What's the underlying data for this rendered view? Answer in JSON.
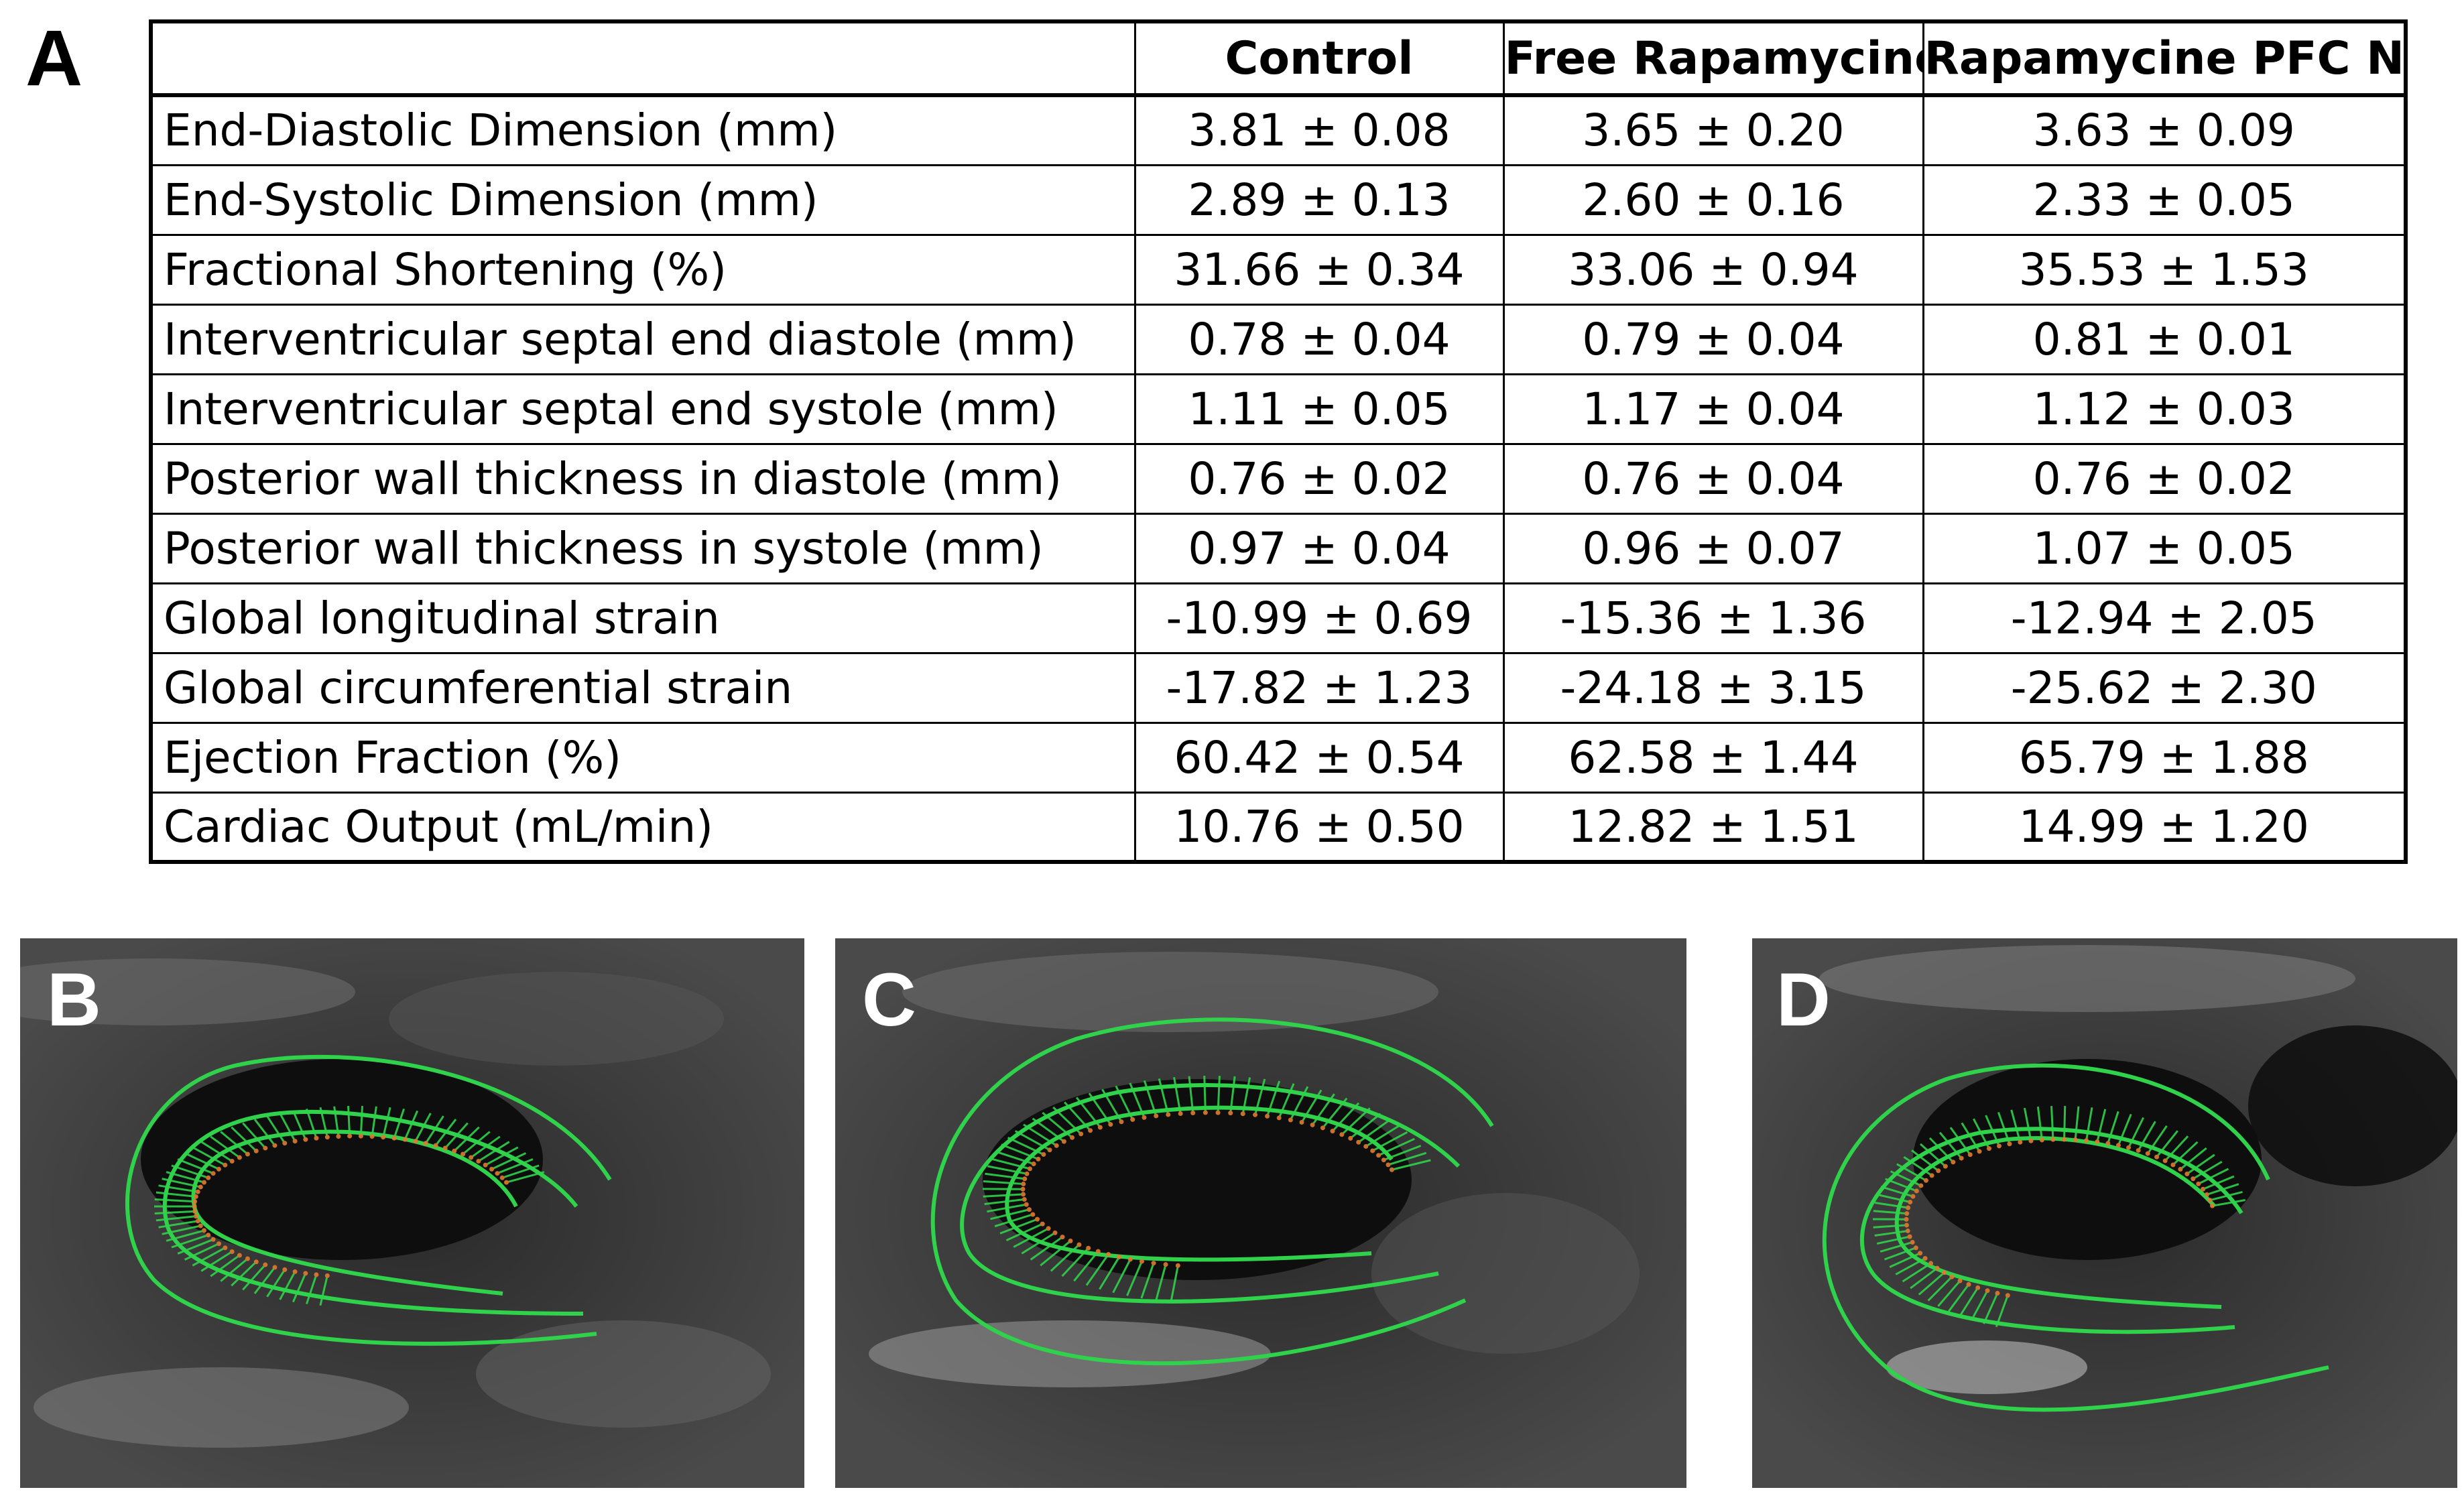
{
  "panel_labels": {
    "a": "A",
    "b": "B",
    "c": "C",
    "d": "D"
  },
  "table": {
    "headers": [
      "",
      "Control",
      "Free Rapamycine",
      "Rapamycine PFC NP"
    ],
    "rows": [
      {
        "label": "End-Diastolic Dimension (mm)",
        "values": [
          "3.81 ± 0.08",
          "3.65 ± 0.20",
          "3.63 ± 0.09"
        ]
      },
      {
        "label": "End-Systolic Dimension (mm)",
        "values": [
          "2.89 ± 0.13",
          "2.60 ± 0.16",
          "2.33 ± 0.05"
        ]
      },
      {
        "label": "Fractional Shortening (%)",
        "values": [
          "31.66 ± 0.34",
          "33.06 ± 0.94",
          "35.53 ± 1.53"
        ]
      },
      {
        "label": "Interventricular septal end diastole (mm)",
        "values": [
          "0.78 ± 0.04",
          "0.79 ± 0.04",
          "0.81 ± 0.01"
        ]
      },
      {
        "label": "Interventricular septal end systole (mm)",
        "values": [
          "1.11 ± 0.05",
          "1.17 ± 0.04",
          "1.12 ± 0.03"
        ]
      },
      {
        "label": "Posterior wall thickness in diastole (mm)",
        "values": [
          "0.76 ± 0.02",
          "0.76 ± 0.04",
          "0.76 ± 0.02"
        ]
      },
      {
        "label": "Posterior wall thickness in systole (mm)",
        "values": [
          "0.97 ± 0.04",
          "0.96 ± 0.07",
          "1.07 ± 0.05"
        ]
      },
      {
        "label": "Global longitudinal strain",
        "values": [
          "-10.99 ± 0.69",
          "-15.36 ± 1.36",
          "-12.94 ± 2.05"
        ]
      },
      {
        "label": "Global circumferential strain",
        "values": [
          "-17.82 ± 1.23",
          "-24.18 ± 3.15",
          "-25.62 ± 2.30"
        ]
      },
      {
        "label": "Ejection Fraction (%)",
        "values": [
          "60.42 ± 0.54",
          "62.58 ± 1.44",
          "65.79 ± 1.88"
        ]
      },
      {
        "label": "Cardiac Output (mL/min)",
        "values": [
          "10.76 ± 0.50",
          "12.82 ± 1.51",
          "14.99 ± 1.20"
        ]
      }
    ]
  },
  "colors": {
    "trace_green": "#2fd24a",
    "dot_orange": "#e07a30",
    "ultrasound_bg": "#1a1a1a"
  }
}
